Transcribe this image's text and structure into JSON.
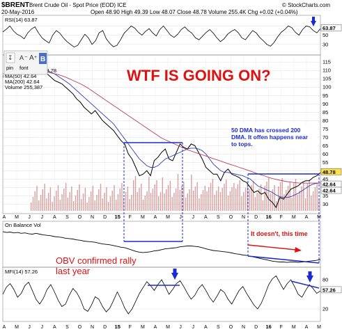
{
  "header": {
    "symbol": "$BRENT",
    "name": "Brent Crude Oil - Spot Price (EOD)  ICE",
    "date": "20-May-2016",
    "ohlc": "Open 48.90  High 49.39  Low 48.07  Close 48.78  Volume 255.4K  Chg +0.02 (+0.04%)",
    "watermark": "© StockCharts.com"
  },
  "toolbar": {
    "pin": "pin",
    "font": "font",
    "font_a_minus": "A",
    "font_a_plus": "A",
    "b_label": "B"
  },
  "colors": {
    "price": "#000000",
    "ma50": "#2f3fb0",
    "ma200": "#b84060",
    "volume": "#c87878",
    "annotation_red": "#e01010",
    "annotation_blue": "#1a2bd0"
  },
  "chart_data": [
    {
      "id": "rsi",
      "type": "line",
      "title": "RSI(14) 63.87",
      "yticks": [
        30,
        50,
        70
      ],
      "ylim": [
        10,
        90
      ],
      "last_value": "63.87",
      "series": [
        {
          "name": "RSI(14)",
          "values": [
            57,
            63,
            70,
            59,
            52,
            48,
            42,
            55,
            63,
            68,
            55,
            44,
            38,
            33,
            50,
            60,
            54,
            44,
            36,
            30,
            24,
            28,
            40,
            52,
            44,
            30,
            38,
            55,
            60,
            42,
            32,
            25,
            28,
            40,
            54,
            62,
            70,
            65,
            56,
            50,
            58,
            64,
            55,
            48,
            62,
            70,
            60,
            50,
            45,
            52,
            62,
            68,
            60,
            54,
            44,
            40,
            48,
            56,
            62,
            54,
            44,
            36,
            42,
            52,
            58,
            62,
            55,
            44,
            40,
            50,
            60,
            55,
            45,
            38,
            30,
            26,
            34,
            46,
            56,
            62,
            70,
            66,
            56,
            50,
            62,
            70,
            68,
            60,
            55,
            64
          ]
        }
      ]
    },
    {
      "id": "price",
      "type": "line",
      "legend": [
        "$BRENT (Daily) 48.78",
        "MA(50) 42.64",
        "MA(200) 42.64",
        "Volume 255,387"
      ],
      "yticks": [
        30,
        35,
        40,
        45,
        50,
        55,
        60,
        65,
        70,
        75,
        80,
        85,
        90,
        95,
        100,
        105,
        110,
        115
      ],
      "ylim": [
        26,
        118
      ],
      "last_price_labels": [
        "48.78",
        "42.64",
        "42.64"
      ],
      "x_axis_labels": [
        "A",
        "M",
        "J",
        "J",
        "A",
        "S",
        "O",
        "N",
        "D",
        "15",
        "F",
        "M",
        "A",
        "M",
        "J",
        "J",
        "A",
        "S",
        "O",
        "N",
        "D",
        "16",
        "F",
        "M",
        "A",
        "M"
      ],
      "series": [
        {
          "name": "$BRENT",
          "values": [
            106,
            107,
            108,
            110,
            109,
            108,
            110,
            112,
            111,
            114,
            112,
            110,
            108,
            106,
            104,
            103,
            102,
            100,
            98,
            96,
            93,
            91,
            88,
            86,
            84,
            86,
            83,
            80,
            78,
            76,
            74,
            71,
            68,
            66,
            60,
            57,
            52,
            47,
            48,
            50,
            47,
            56,
            58,
            61,
            63,
            57,
            56,
            61,
            66,
            64,
            63,
            66,
            65,
            61,
            57,
            52,
            50,
            48,
            48,
            44,
            49,
            51,
            48,
            47,
            46,
            44,
            43,
            40,
            37,
            38,
            36,
            37,
            33,
            31,
            28,
            34,
            33,
            36,
            39,
            40,
            41,
            43,
            44,
            44,
            46,
            47,
            48.8
          ]
        },
        {
          "name": "MA(50)",
          "values": [
            107,
            107.5,
            108,
            108.5,
            109,
            109.5,
            110,
            110.5,
            111,
            111.3,
            111.2,
            110.8,
            110,
            109,
            108,
            106.5,
            105,
            103.5,
            102,
            100,
            98,
            96,
            94,
            92,
            90,
            88,
            86,
            84,
            82,
            80,
            78,
            75,
            72,
            69,
            66,
            63,
            60,
            57,
            55,
            53,
            52,
            52,
            53,
            55,
            57,
            58,
            59,
            60,
            61,
            62,
            63,
            63.5,
            63.5,
            63,
            62,
            60,
            57,
            54,
            52,
            50,
            49,
            49,
            48.5,
            48,
            47.5,
            47,
            46,
            45,
            43,
            41,
            40,
            39,
            38,
            37,
            35.5,
            34.5,
            34,
            34,
            34.5,
            35.5,
            36.5,
            38,
            39.5,
            41,
            42,
            42.5,
            42.64
          ]
        },
        {
          "name": "MA(200)",
          "values": [
            108,
            108.2,
            108.5,
            108.8,
            109,
            109.2,
            109.5,
            109.8,
            110,
            110,
            109.8,
            109.5,
            109,
            108.5,
            108,
            107.5,
            106.8,
            106,
            105,
            104,
            103,
            102,
            100.8,
            99.5,
            98,
            96.5,
            95,
            93.5,
            92,
            90.5,
            89,
            87.5,
            86,
            84.5,
            83,
            81.5,
            80,
            78.5,
            77,
            75.5,
            74,
            72.5,
            71,
            69.5,
            68.5,
            67.5,
            66.5,
            65.5,
            64.5,
            63.5,
            62.5,
            61.8,
            61,
            60.2,
            59.5,
            58.8,
            58,
            57.2,
            56.5,
            55.8,
            55,
            54.2,
            53.5,
            52.8,
            52,
            51.3,
            50.5,
            49.8,
            49,
            48.2,
            47.5,
            46.8,
            46,
            45.3,
            44.8,
            44.3,
            43.9,
            43.5,
            43.2,
            42.9,
            42.7,
            42.6,
            42.55,
            42.55,
            42.6,
            42.62,
            42.64
          ]
        }
      ]
    },
    {
      "id": "obv",
      "type": "line",
      "title": "On Balance Vol",
      "series": [
        {
          "name": "On Balance Vol",
          "values": [
            80,
            78,
            79,
            77,
            78,
            76,
            77,
            75,
            74,
            76,
            74,
            72,
            71,
            70,
            68,
            67,
            66,
            64,
            63,
            62,
            60,
            59,
            57,
            56,
            55,
            54,
            52,
            50,
            49,
            48,
            46,
            44,
            42,
            41,
            38,
            35,
            32,
            30,
            29,
            30,
            31,
            33,
            34,
            36,
            38,
            39,
            40,
            41,
            43,
            44,
            45,
            45,
            44,
            43,
            41,
            38,
            36,
            34,
            33,
            32,
            31,
            30,
            28,
            26,
            25,
            23,
            22,
            20,
            18,
            16,
            14,
            12,
            10,
            8,
            7,
            6,
            6,
            5,
            6,
            6,
            5,
            6,
            7,
            8,
            9,
            10,
            12
          ]
        }
      ]
    },
    {
      "id": "mfi",
      "type": "line",
      "title": "MFI(14) 57.26",
      "yticks": [
        20,
        80
      ],
      "ylim": [
        0,
        100
      ],
      "last_value": "57.26",
      "x_axis_labels": [
        "A",
        "M",
        "J",
        "J",
        "A",
        "S",
        "O",
        "N",
        "D",
        "15",
        "F",
        "M",
        "A",
        "M",
        "J",
        "J",
        "A",
        "S",
        "O",
        "N",
        "D",
        "16",
        "F",
        "M",
        "A",
        "M"
      ],
      "series": [
        {
          "name": "MFI(14)",
          "values": [
            50,
            65,
            72,
            60,
            44,
            52,
            68,
            75,
            58,
            40,
            30,
            42,
            60,
            70,
            55,
            38,
            25,
            30,
            48,
            62,
            54,
            40,
            20,
            15,
            28,
            45,
            40,
            25,
            14,
            22,
            38,
            55,
            40,
            22,
            10,
            20,
            36,
            52,
            64,
            76,
            68,
            58,
            70,
            80,
            66,
            50,
            60,
            72,
            78,
            66,
            52,
            40,
            48,
            62,
            70,
            58,
            44,
            34,
            46,
            60,
            54,
            40,
            30,
            44,
            58,
            66,
            52,
            40,
            28,
            20,
            32,
            50,
            70,
            82,
            88,
            74,
            60,
            72,
            80,
            66,
            50,
            44,
            58,
            70,
            62,
            52,
            57
          ]
        }
      ]
    }
  ],
  "annotations": {
    "headline": "WTF IS GOING ON?",
    "ma_cross_note": "50 DMA has crossed 200 DMA. It often happens near to tops.",
    "doesnt_note": "It doesn't, this time",
    "obv_note_line1": "OBV confirmed rally",
    "obv_note_line2": "last year"
  }
}
